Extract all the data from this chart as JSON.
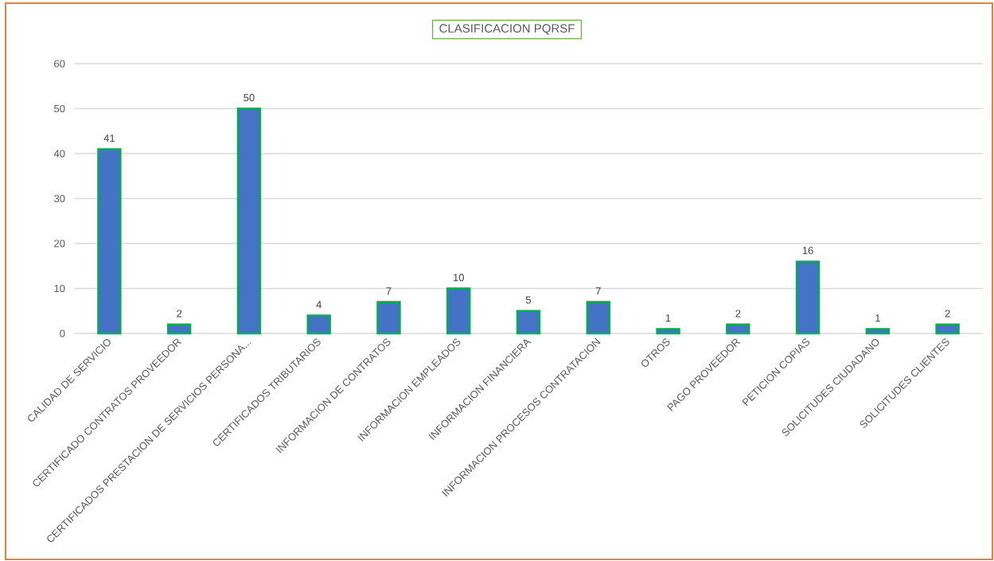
{
  "chart_data": {
    "type": "bar",
    "title": "CLASIFICACION PQRSF",
    "categories": [
      "CALIDAD DE SERVICIO",
      "CERTIFICADO CONTRATOS PROVEEDOR",
      "CERTIFICADOS PRESTACION DE SERVICIOS PERSONA...",
      "CERTIFICADOS TRIBUTARIOS",
      "INFORMACION DE CONTRATOS",
      "INFORMACION EMPLEADOS",
      "INFORMACION FINANCIERA",
      "INFORMACION PROCESOS CONTRATACION",
      "OTROS",
      "PAGO PROVEEDOR",
      "PETICION COPIAS",
      "SOLICITUDES CIUDADANO",
      "SOLICITUDES CLIENTES"
    ],
    "values": [
      41,
      2,
      50,
      4,
      7,
      10,
      5,
      7,
      1,
      2,
      16,
      1,
      2
    ],
    "color": "#4472c4",
    "ylim": [
      0,
      60
    ],
    "yticks": [
      0,
      10,
      20,
      30,
      40,
      50,
      60
    ],
    "grid": "y",
    "data_labels": true
  }
}
